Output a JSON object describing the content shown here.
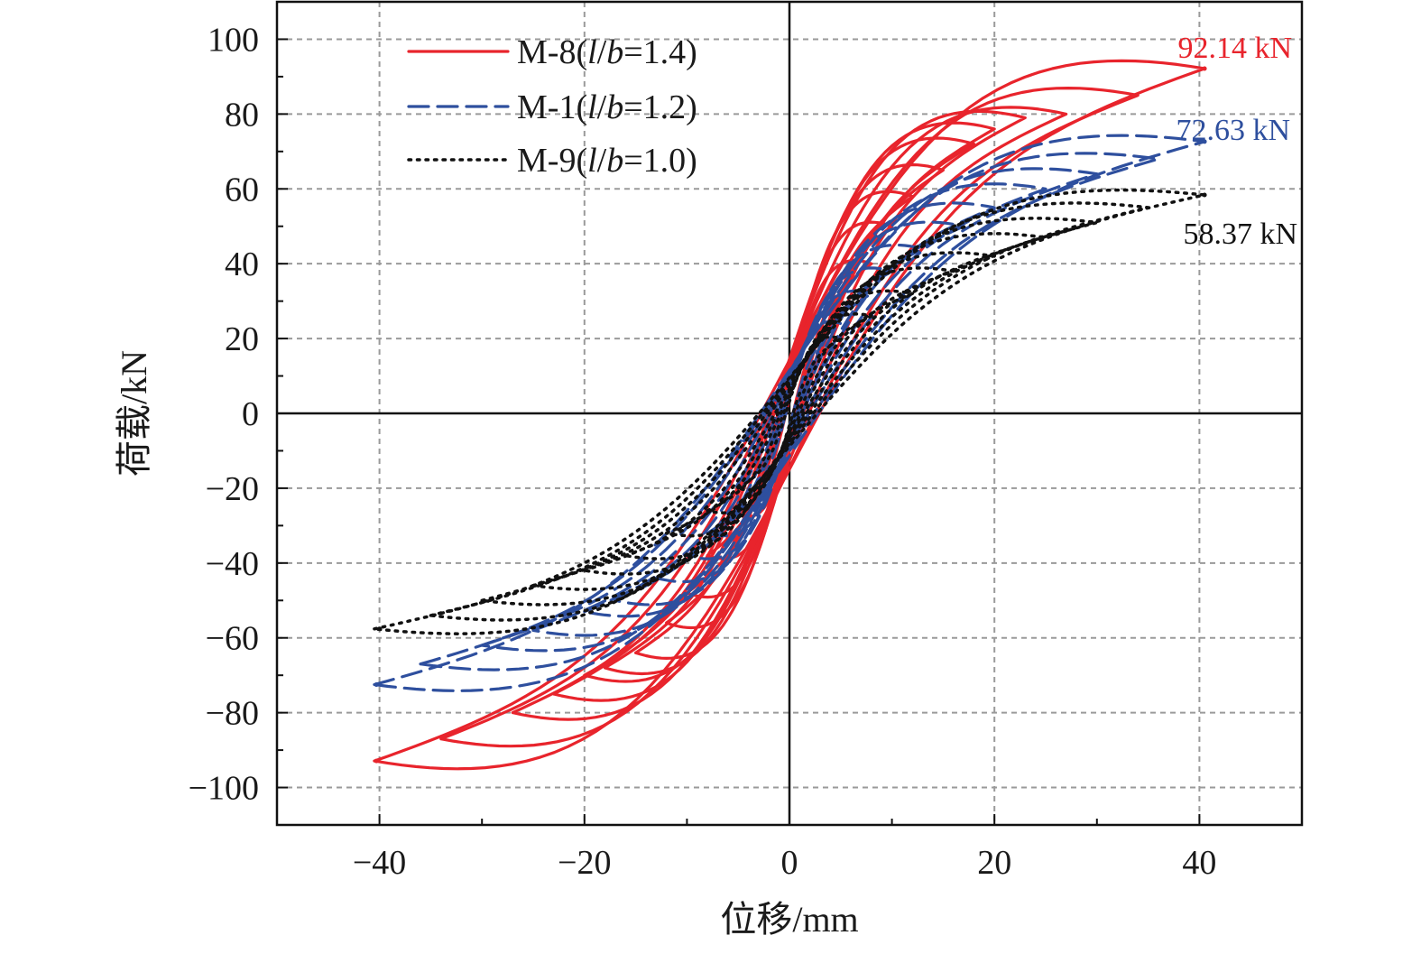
{
  "chart_data": {
    "type": "line",
    "xlabel": "位移/mm",
    "ylabel": "荷载/kN",
    "xlim": [
      -50,
      50
    ],
    "ylim": [
      -110,
      110
    ],
    "xticks": [
      -40,
      -20,
      0,
      20,
      40
    ],
    "yticks": [
      100,
      80,
      60,
      40,
      20,
      0,
      -20,
      -40,
      -60,
      -80,
      -100
    ],
    "grid": true,
    "legend_position": "top-left",
    "series": [
      {
        "name": "M-8(l/b=1.4)",
        "label_main": "M-8(",
        "label_l": "l",
        "label_slash": "/",
        "label_b": "b",
        "label_rest": "=1.4)",
        "color": "#e8242c",
        "style": "solid",
        "peak_label": "92.14 kN",
        "peak": [
          40.5,
          92.14
        ],
        "neg_peak": [
          -40.3,
          -92.9
        ],
        "loops": [
          {
            "amp": 5,
            "pos": 27,
            "neg": -27
          },
          {
            "amp": 8,
            "pos": 40,
            "neg": -38
          },
          {
            "amp": 10,
            "pos": 50,
            "neg": -48
          },
          {
            "amp": 12,
            "pos": 58,
            "neg": -56
          },
          {
            "amp": 15,
            "pos": 65,
            "neg": -64
          },
          {
            "amp": 18,
            "pos": 72,
            "neg": -68
          },
          {
            "amp": 20,
            "pos": 76,
            "neg": -70
          },
          {
            "amp": 23,
            "pos": 79,
            "neg": -75
          },
          {
            "amp": 27,
            "pos": 80,
            "neg": -80
          },
          {
            "amp": 34,
            "pos": 85,
            "neg": -87
          },
          {
            "amp": 40.5,
            "pos": 92.14,
            "neg": -92.9
          }
        ]
      },
      {
        "name": "M-1(l/b=1.2)",
        "label_main": "M-1(",
        "label_l": "l",
        "label_slash": "/",
        "label_b": "b",
        "label_rest": "=1.2)",
        "color": "#2e4f9e",
        "style": "dashed",
        "peak_label": "72.63 kN",
        "peak": [
          40.5,
          72.63
        ],
        "neg_peak": [
          -40.3,
          -72.5
        ],
        "loops": [
          {
            "amp": 5,
            "pos": 24,
            "neg": -24
          },
          {
            "amp": 8,
            "pos": 32,
            "neg": -32
          },
          {
            "amp": 10,
            "pos": 38,
            "neg": -38
          },
          {
            "amp": 13,
            "pos": 44,
            "neg": -44
          },
          {
            "amp": 17,
            "pos": 50,
            "neg": -50
          },
          {
            "amp": 20,
            "pos": 55,
            "neg": -53
          },
          {
            "amp": 25,
            "pos": 60,
            "neg": -58
          },
          {
            "amp": 30,
            "pos": 64,
            "neg": -62
          },
          {
            "amp": 36,
            "pos": 68,
            "neg": -67
          },
          {
            "amp": 40.5,
            "pos": 72.63,
            "neg": -72.5
          }
        ]
      },
      {
        "name": "M-9(l/b=1.0)",
        "label_main": "M-9(",
        "label_l": "l",
        "label_slash": "/",
        "label_b": "b",
        "label_rest": "=1.0)",
        "color": "#111111",
        "style": "dotted",
        "peak_label": "58.37 kN",
        "peak": [
          40.5,
          58.37
        ],
        "neg_peak": [
          -40.0,
          -57.6
        ],
        "loops": [
          {
            "amp": 5,
            "pos": 20,
            "neg": -20
          },
          {
            "amp": 8,
            "pos": 26,
            "neg": -26
          },
          {
            "amp": 12,
            "pos": 32,
            "neg": -32
          },
          {
            "amp": 16,
            "pos": 38,
            "neg": -38
          },
          {
            "amp": 20,
            "pos": 42,
            "neg": -42
          },
          {
            "amp": 25,
            "pos": 47,
            "neg": -46
          },
          {
            "amp": 30,
            "pos": 51,
            "neg": -50
          },
          {
            "amp": 35,
            "pos": 55,
            "neg": -54
          },
          {
            "amp": 40.5,
            "pos": 58.37,
            "neg": -57.6
          }
        ]
      }
    ]
  }
}
